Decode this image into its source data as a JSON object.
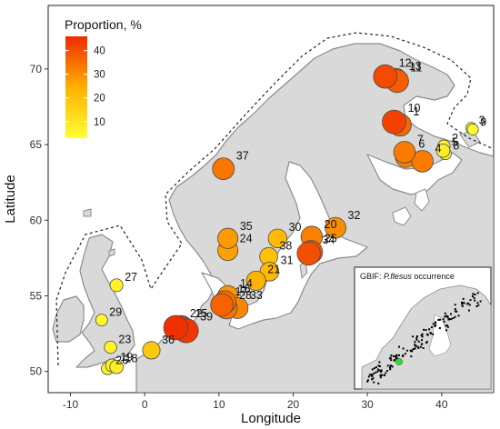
{
  "map": {
    "xlabel": "Longitude",
    "ylabel": "Latitude",
    "xticks": [
      "-10",
      "0",
      "10",
      "20",
      "30",
      "40"
    ],
    "yticks": [
      "50",
      "55",
      "60",
      "65",
      "70"
    ],
    "xlim": [
      -13,
      47
    ],
    "ylim": [
      48.6,
      74.2
    ],
    "colors": {
      "land": "#d9d9d9",
      "coast": "#8c8c8c",
      "distribution_boundary": "#222222",
      "background": "#ffffff"
    }
  },
  "legend": {
    "title": "Proportion, %",
    "ticks": [
      "40",
      "30",
      "20",
      "10"
    ],
    "range": [
      3,
      46
    ],
    "color_low": "#ffff33",
    "color_mid": "#ffb000",
    "color_high": "#f02a00"
  },
  "inset": {
    "title_prefix": "GBIF: ",
    "title_species": "P.flesus",
    "title_suffix": " occurrence",
    "occurrence_color": "#000000",
    "highlight_color": "#33dd33"
  },
  "sites": [
    {
      "label": "1",
      "lon": 34.4,
      "lat": 66.3,
      "pct": 36
    },
    {
      "label": "2",
      "lon": 40.3,
      "lat": 64.9,
      "pct": 6
    },
    {
      "label": "3",
      "lon": 44.0,
      "lat": 66.1,
      "pct": 4
    },
    {
      "label": "4",
      "lon": 37.4,
      "lat": 63.9,
      "pct": 33
    },
    {
      "label": "5",
      "lon": 40.2,
      "lat": 64.6,
      "pct": 8
    },
    {
      "label": "6",
      "lon": 35.2,
      "lat": 64.2,
      "pct": 32
    },
    {
      "label": "7",
      "lon": 35.0,
      "lat": 64.5,
      "pct": 33
    },
    {
      "label": "8",
      "lon": 40.5,
      "lat": 64.4,
      "pct": 5
    },
    {
      "label": "9",
      "lon": 44.2,
      "lat": 66.0,
      "pct": 4
    },
    {
      "label": "10",
      "lon": 33.6,
      "lat": 66.5,
      "pct": 42
    },
    {
      "label": "11",
      "lon": 34.0,
      "lat": 69.2,
      "pct": 38
    },
    {
      "label": "12",
      "lon": 32.4,
      "lat": 69.5,
      "pct": 41
    },
    {
      "label": "13",
      "lon": 33.8,
      "lat": 69.3,
      "pct": 37
    },
    {
      "label": "14",
      "lon": 11.2,
      "lat": 55.0,
      "pct": 29
    },
    {
      "label": "15",
      "lon": 4.9,
      "lat": 52.9,
      "pct": 44
    },
    {
      "label": "16",
      "lon": 10.8,
      "lat": 54.6,
      "pct": 35
    },
    {
      "label": "17",
      "lon": 10.4,
      "lat": 54.4,
      "pct": 37
    },
    {
      "label": "18",
      "lon": -3.8,
      "lat": 50.3,
      "pct": 8
    },
    {
      "label": "19",
      "lon": -4.4,
      "lat": 50.4,
      "pct": 7
    },
    {
      "label": "20",
      "lon": 22.5,
      "lat": 58.9,
      "pct": 32
    },
    {
      "label": "21",
      "lon": 15.0,
      "lat": 56.0,
      "pct": 24
    },
    {
      "label": "22",
      "lon": 4.2,
      "lat": 52.9,
      "pct": 45
    },
    {
      "label": "23",
      "lon": -4.6,
      "lat": 51.6,
      "pct": 6
    },
    {
      "label": "24",
      "lon": 11.2,
      "lat": 58.0,
      "pct": 27
    },
    {
      "label": "25",
      "lon": 22.4,
      "lat": 57.9,
      "pct": 39
    },
    {
      "label": "26",
      "lon": -5.0,
      "lat": 50.2,
      "pct": 6
    },
    {
      "label": "27",
      "lon": -3.8,
      "lat": 55.7,
      "pct": 7
    },
    {
      "label": "28",
      "lon": 11.0,
      "lat": 54.2,
      "pct": 34
    },
    {
      "label": "29",
      "lon": -5.8,
      "lat": 53.4,
      "pct": 5
    },
    {
      "label": "30",
      "lon": 17.9,
      "lat": 58.8,
      "pct": 22
    },
    {
      "label": "31",
      "lon": 16.8,
      "lat": 56.6,
      "pct": 22
    },
    {
      "label": "32",
      "lon": 25.7,
      "lat": 59.5,
      "pct": 30
    },
    {
      "label": "33",
      "lon": 12.5,
      "lat": 54.2,
      "pct": 31
    },
    {
      "label": "34",
      "lon": 22.1,
      "lat": 57.8,
      "pct": 40
    },
    {
      "label": "35",
      "lon": 11.2,
      "lat": 58.8,
      "pct": 28
    },
    {
      "label": "36",
      "lon": 0.9,
      "lat": 51.4,
      "pct": 18
    },
    {
      "label": "37",
      "lon": 10.6,
      "lat": 63.4,
      "pct": 34
    },
    {
      "label": "38",
      "lon": 16.7,
      "lat": 57.6,
      "pct": 20
    },
    {
      "label": "39",
      "lon": 5.6,
      "lat": 52.7,
      "pct": 44
    }
  ]
}
